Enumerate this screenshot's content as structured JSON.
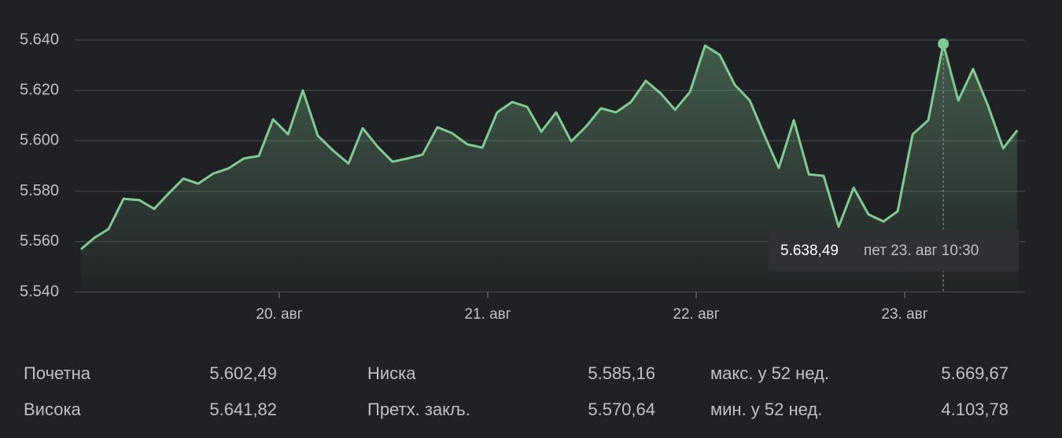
{
  "chart_data": {
    "type": "line",
    "x": [
      19.049,
      19.113,
      19.181,
      19.253,
      19.328,
      19.4,
      19.468,
      19.54,
      19.611,
      19.683,
      19.755,
      19.83,
      19.902,
      19.97,
      20.042,
      20.113,
      20.185,
      20.26,
      20.332,
      20.4,
      20.472,
      20.543,
      20.615,
      20.687,
      20.758,
      20.83,
      20.902,
      20.974,
      21.045,
      21.117,
      21.189,
      21.257,
      21.328,
      21.4,
      21.472,
      21.543,
      21.615,
      21.687,
      21.758,
      21.83,
      21.898,
      21.97,
      22.042,
      22.113,
      22.185,
      22.257,
      22.325,
      22.396,
      22.468,
      22.54,
      22.611,
      22.683,
      22.755,
      22.826,
      22.898,
      22.966,
      23.038,
      23.113,
      23.185,
      23.257,
      23.328,
      23.4,
      23.472,
      23.54
    ],
    "series": [
      {
        "color": "#81c995",
        "values": [
          5557,
          5561.5,
          5565,
          5577,
          5576.5,
          5573,
          5579,
          5585,
          5583,
          5587,
          5589,
          5593,
          5594,
          5608.5,
          5602.6,
          5620,
          5602,
          5596,
          5591,
          5605,
          5597.6,
          5591.7,
          5593,
          5594.5,
          5605.4,
          5603,
          5598.6,
          5597.3,
          5611.3,
          5615.4,
          5613.5,
          5603.6,
          5611.3,
          5599.8,
          5605.7,
          5612.9,
          5611.3,
          5615.4,
          5623.8,
          5618.8,
          5612.3,
          5619.4,
          5637.8,
          5634.1,
          5622.2,
          5616,
          5602.6,
          5589.2,
          5608.2,
          5586.7,
          5586.1,
          5565.9,
          5581.4,
          5570.8,
          5568,
          5572,
          5602.6,
          5608.2,
          5638.49,
          5616,
          5628.5,
          5613.8,
          5597,
          5604.2
        ]
      }
    ],
    "xlim": [
      19.049,
      23.577
    ],
    "xticks": [
      {
        "value": 20,
        "label": "20. авг"
      },
      {
        "value": 21,
        "label": "21. авг"
      },
      {
        "value": 22,
        "label": "22. авг"
      },
      {
        "value": 23,
        "label": "23. авг"
      }
    ],
    "ylim": [
      5540,
      5640
    ],
    "yticks": [
      {
        "value": 5540,
        "label": "5.540"
      },
      {
        "value": 5560,
        "label": "5.560"
      },
      {
        "value": 5580,
        "label": "5.580"
      },
      {
        "value": 5600,
        "label": "5.600"
      },
      {
        "value": 5620,
        "label": "5.620"
      },
      {
        "value": 5640,
        "label": "5.640"
      }
    ],
    "grid": true,
    "tooltip": {
      "x": 23.185,
      "value": 5638.49,
      "label": "5.638,49",
      "time": "пет 23. авг 10:30"
    }
  },
  "stats": {
    "rows": [
      [
        "Почетна",
        "5.602,49",
        "Ниска",
        "5.585,16",
        "макс. у 52 нед.",
        "5.669,67"
      ],
      [
        "Висока",
        "5.641,82",
        "Претх. закљ.",
        "5.570,64",
        "мин. у 52 нед.",
        "4.103,78"
      ]
    ]
  }
}
